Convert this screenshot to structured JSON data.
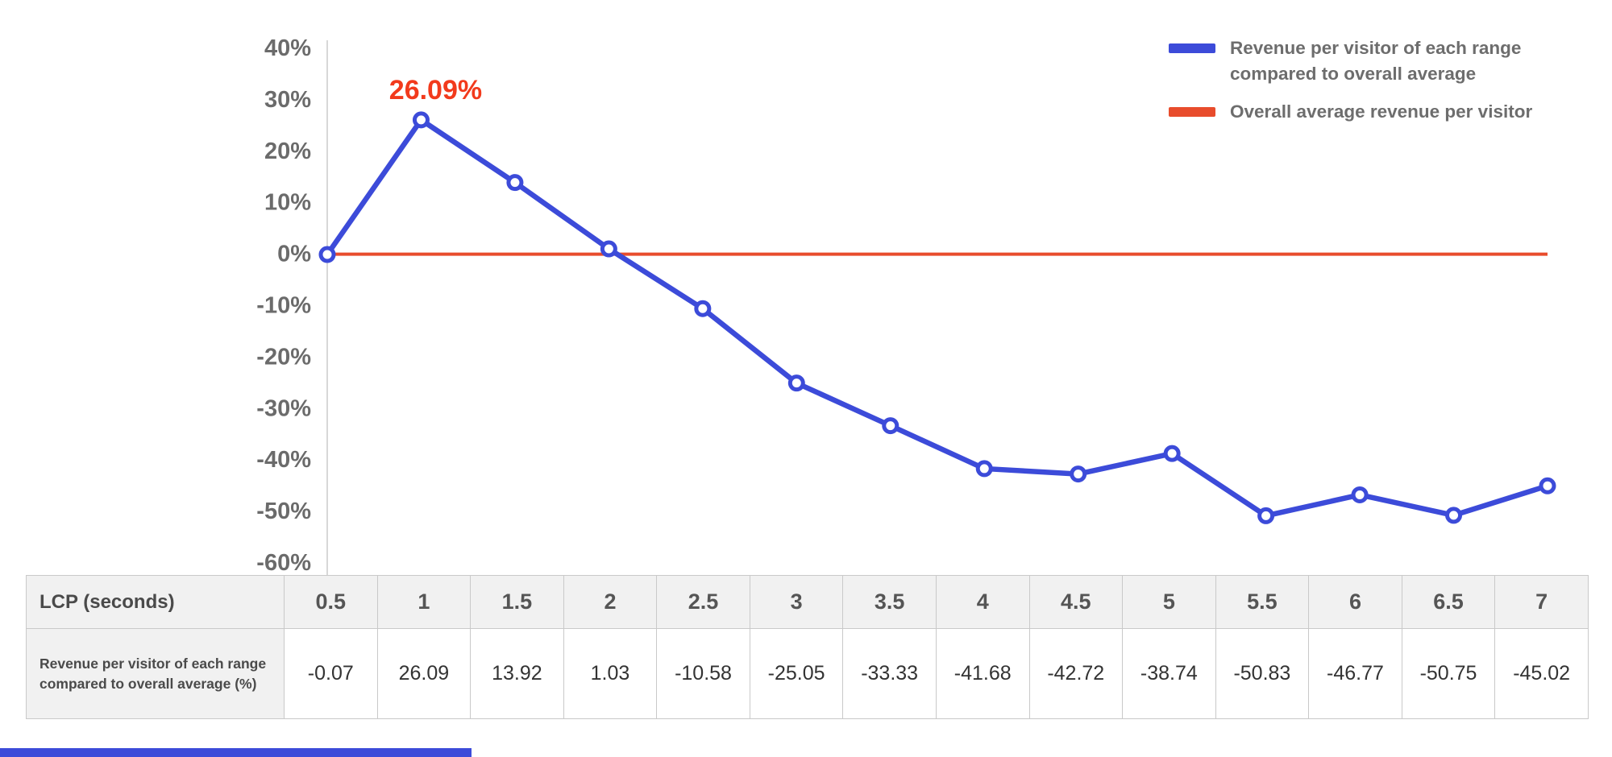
{
  "colors": {
    "line_blue": "#3c4bd9",
    "average_red": "#e84c2c",
    "annotation_red": "#f23a1c",
    "axis_text_gray": "#6b6b6b",
    "legend_text_gray": "#6d6d6d",
    "table_border_gray": "#c9c9c9",
    "table_header_bg": "#f1f1f1",
    "accent_bar_blue": "#3c4bd9"
  },
  "chart_data": {
    "type": "line",
    "x": [
      "0.5",
      "1",
      "1.5",
      "2",
      "2.5",
      "3",
      "3.5",
      "4",
      "4.5",
      "5",
      "5.5",
      "6",
      "6.5",
      "7"
    ],
    "series": [
      {
        "name": "Revenue per visitor of each range compared to overall average",
        "color": "#3c4bd9",
        "values": [
          -0.07,
          26.09,
          13.92,
          1.03,
          -10.58,
          -25.05,
          -33.33,
          -41.68,
          -42.72,
          -38.74,
          -50.83,
          -46.77,
          -50.75,
          -45.02
        ]
      },
      {
        "name": "Overall average revenue per visitor",
        "color": "#e84c2c",
        "values": [
          0,
          0,
          0,
          0,
          0,
          0,
          0,
          0,
          0,
          0,
          0,
          0,
          0,
          0
        ]
      }
    ],
    "title": "",
    "xlabel": "LCP (seconds)",
    "ylabel": "",
    "ylim": [
      -60,
      40
    ],
    "yticks": [
      "40%",
      "30%",
      "20%",
      "10%",
      "0%",
      "-10%",
      "-20%",
      "-30%",
      "-40%",
      "-50%",
      "-60%"
    ],
    "ytick_step": 10,
    "grid": false,
    "legend_position": "top-right",
    "annotation": {
      "text": "26.09%",
      "x": "1",
      "y": 26.09
    }
  },
  "legend": {
    "items": [
      {
        "label": "Revenue per visitor of each range compared to overall average",
        "color": "#3c4bd9"
      },
      {
        "label": "Overall average revenue per visitor",
        "color": "#e84c2c"
      }
    ]
  },
  "table": {
    "header_label": "LCP (seconds)",
    "columns": [
      "0.5",
      "1",
      "1.5",
      "2",
      "2.5",
      "3",
      "3.5",
      "4",
      "4.5",
      "5",
      "5.5",
      "6",
      "6.5",
      "7"
    ],
    "row_label": "Revenue per visitor of each range compared to overall average (%)",
    "row_values": [
      "-0.07",
      "26.09",
      "13.92",
      "1.03",
      "-10.58",
      "-25.05",
      "-33.33",
      "-41.68",
      "-42.72",
      "-38.74",
      "-50.83",
      "-46.77",
      "-50.75",
      "-45.02"
    ]
  }
}
